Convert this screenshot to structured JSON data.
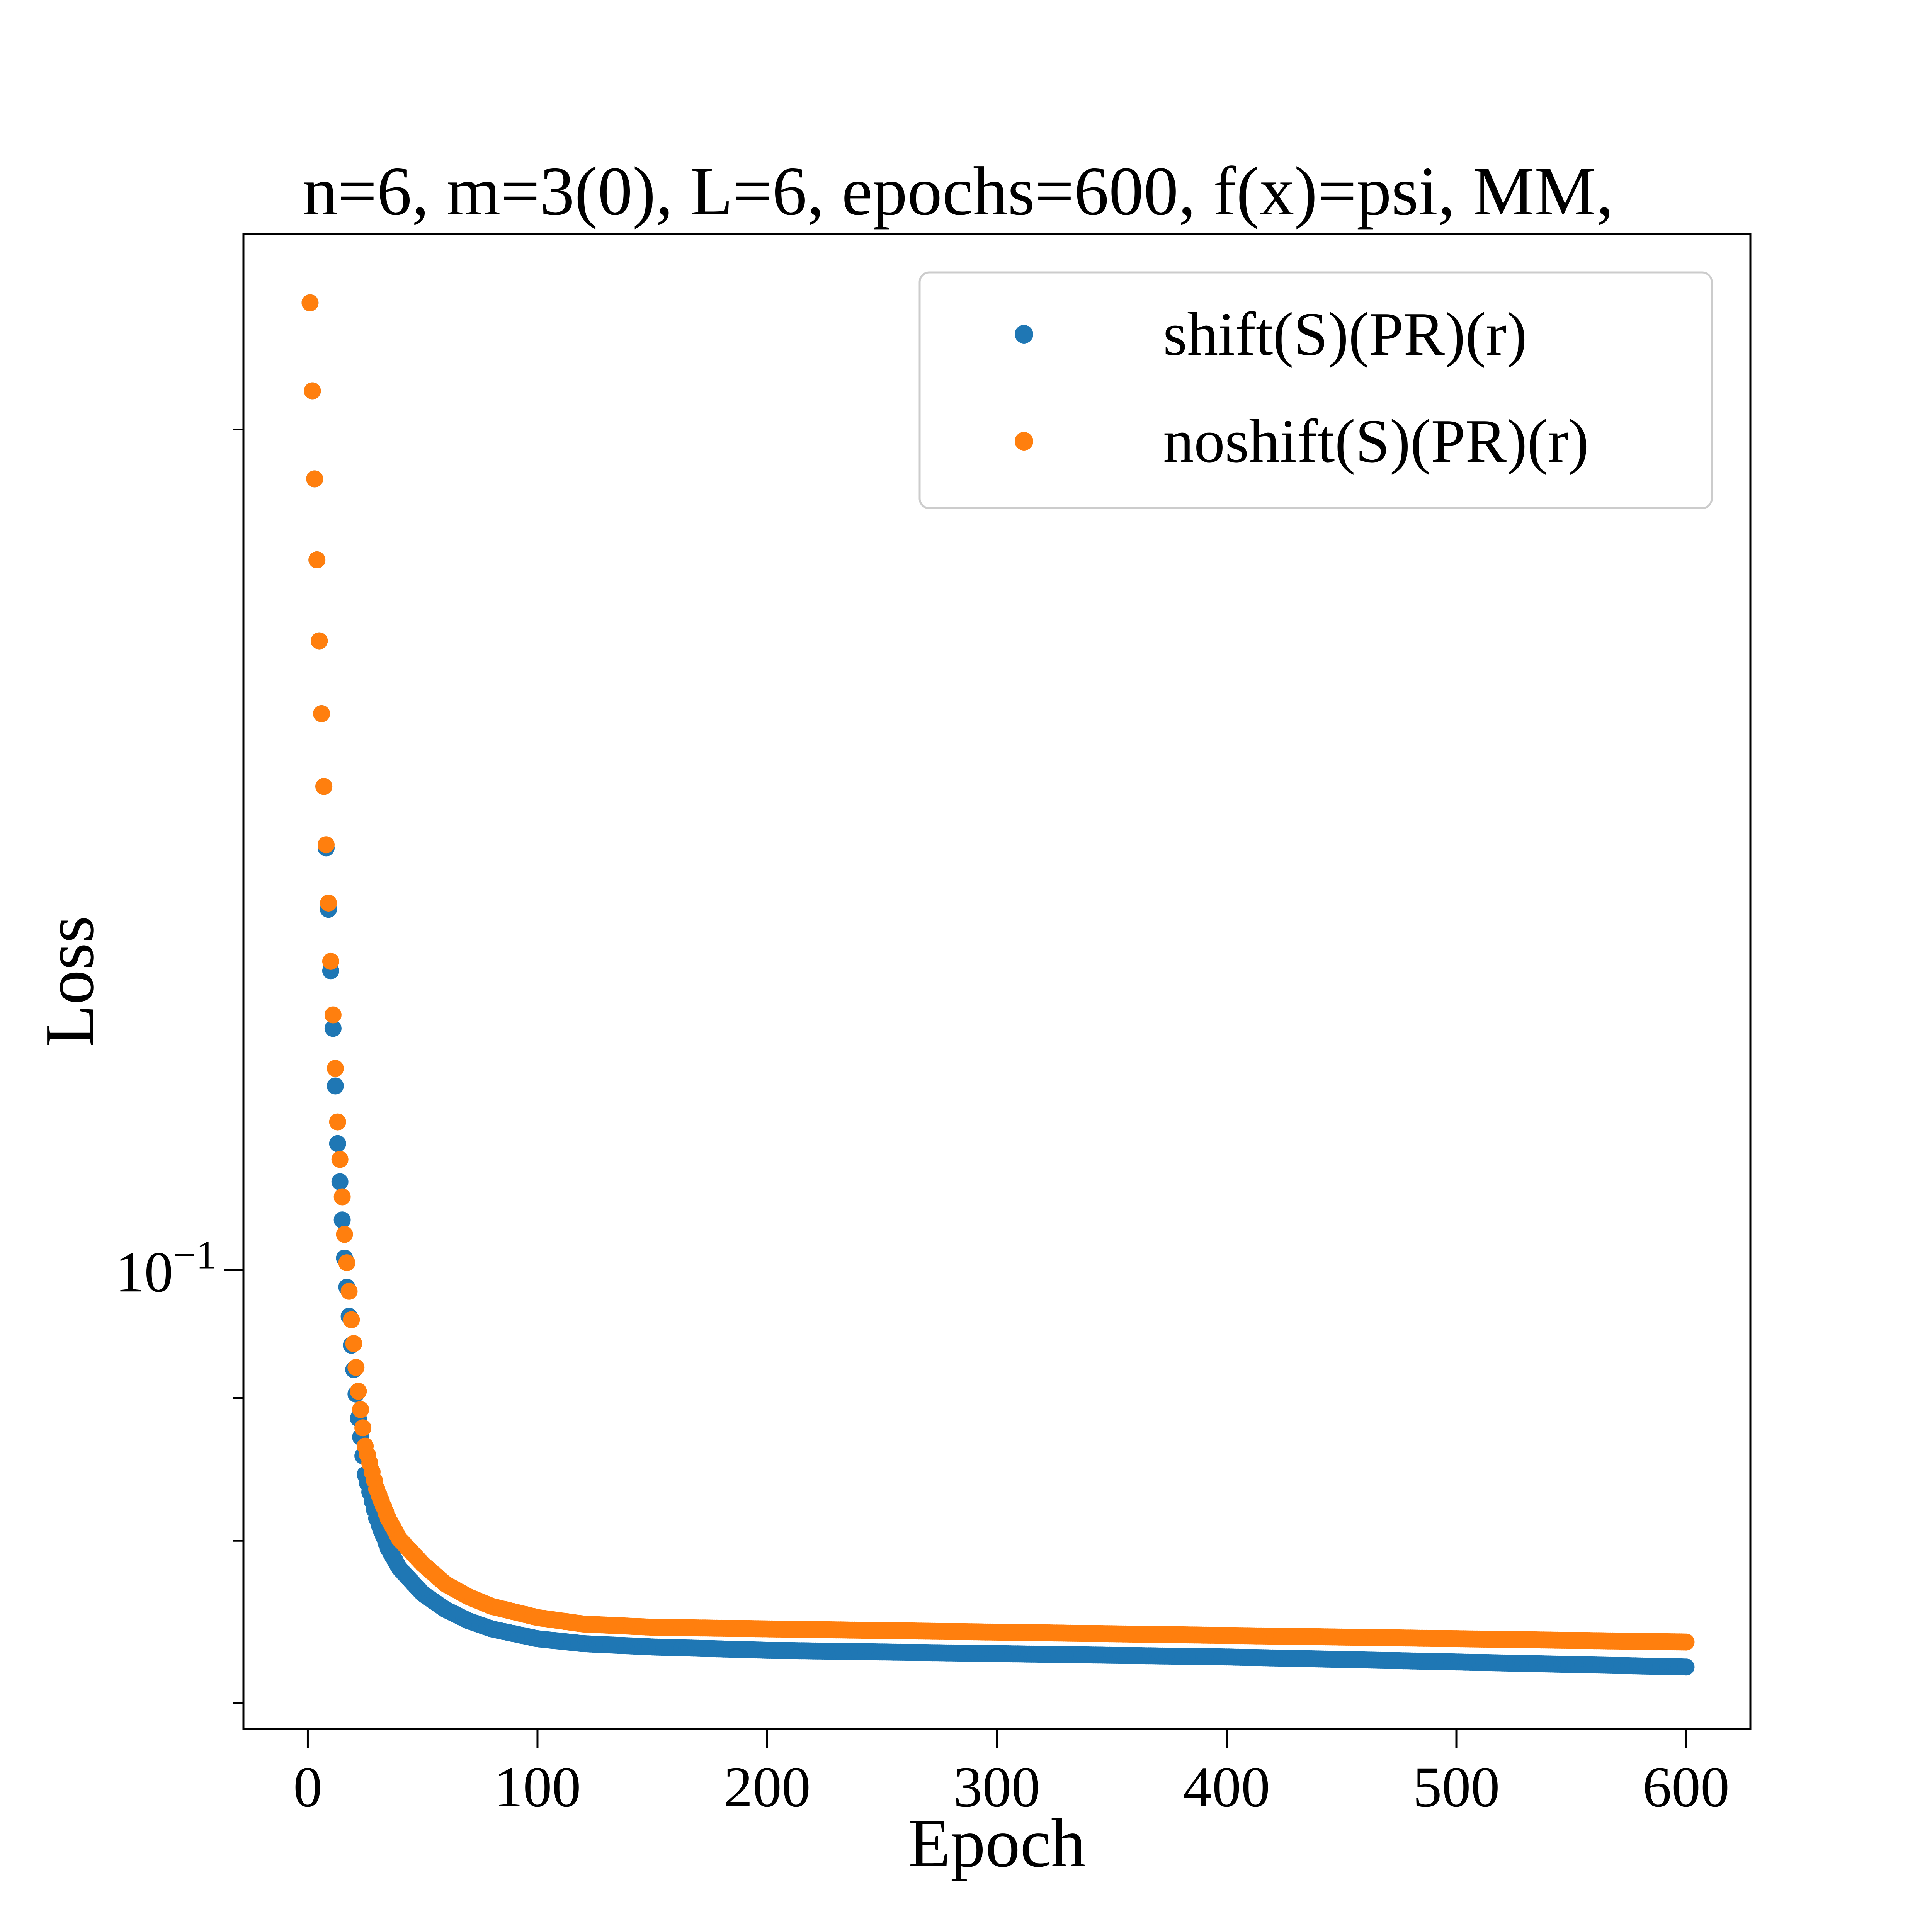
{
  "chart_data": {
    "type": "scatter",
    "title": "n=6, m=3(0), L=6, epochs=600, f(x)=psi, MM,",
    "xlabel": "Epoch",
    "ylabel": "Loss",
    "xlim": [
      -28,
      628
    ],
    "ylim": [
      0.0685,
      0.235
    ],
    "yscale": "log",
    "x_ticks": [
      0,
      100,
      200,
      300,
      400,
      500,
      600
    ],
    "x_tick_labels": [
      "0",
      "100",
      "200",
      "300",
      "400",
      "500",
      "600"
    ],
    "y_major_ticks": [
      0.1
    ],
    "y_major_tick_labels": [
      {
        "base": "10",
        "exponent": "−1"
      }
    ],
    "y_minor_ticks": [
      0.07,
      0.08,
      0.09,
      0.2
    ],
    "legend": {
      "position": "top-right",
      "entries": [
        "shift(S)(PR)(r)",
        "noshift(S)(PR)(r)"
      ]
    },
    "series": [
      {
        "name": "shift(S)(PR)(r)",
        "color": "#1f77b4",
        "x": [
          1,
          3,
          5,
          7,
          10,
          13,
          16,
          19,
          22,
          25,
          30,
          35,
          40,
          50,
          60,
          70,
          80,
          100,
          120,
          150,
          200,
          300,
          400,
          500,
          600
        ],
        "y": [
          0.222,
          0.192,
          0.168,
          0.149,
          0.128,
          0.111,
          0.101,
          0.094,
          0.0885,
          0.0845,
          0.0815,
          0.0795,
          0.0782,
          0.0766,
          0.0756,
          0.0749,
          0.0744,
          0.0738,
          0.0735,
          0.0733,
          0.0731,
          0.0729,
          0.0727,
          0.0724,
          0.0721
        ]
      },
      {
        "name": "noshift(S)(PR)(r)",
        "color": "#ff7f0e",
        "x": [
          1,
          3,
          5,
          7,
          10,
          13,
          16,
          19,
          22,
          25,
          30,
          35,
          40,
          50,
          60,
          70,
          80,
          100,
          120,
          150,
          200,
          300,
          400,
          500,
          600
        ],
        "y": [
          0.222,
          0.192,
          0.168,
          0.149,
          0.129,
          0.113,
          0.103,
          0.096,
          0.0905,
          0.0865,
          0.0835,
          0.0815,
          0.0801,
          0.0785,
          0.0772,
          0.0764,
          0.0758,
          0.0751,
          0.0747,
          0.0745,
          0.0744,
          0.0742,
          0.074,
          0.0738,
          0.0736
        ]
      }
    ]
  }
}
